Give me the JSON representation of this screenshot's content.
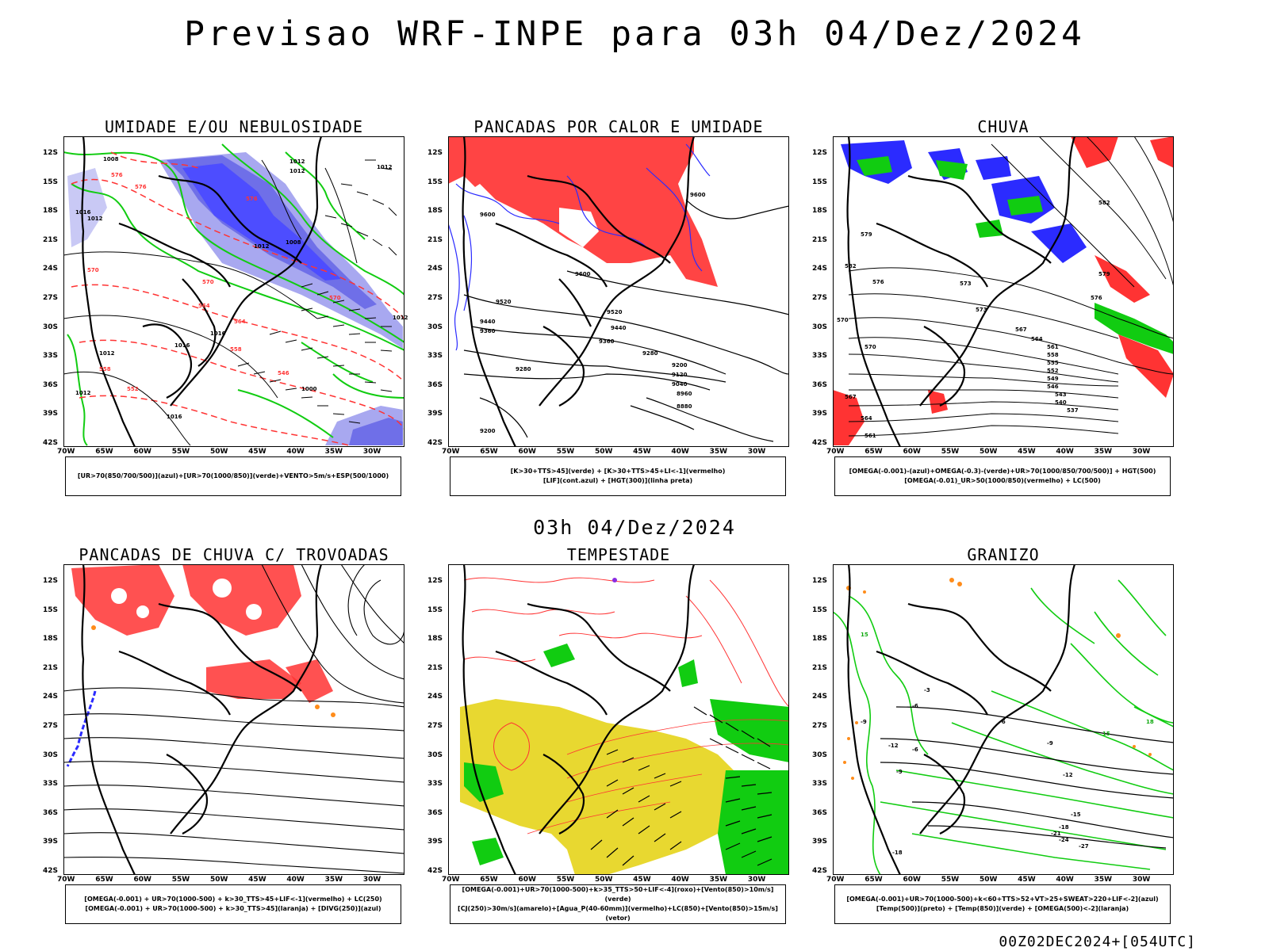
{
  "title": "Previsao WRF-INPE  para 03h 04/Dez/2024",
  "mid_date": "03h 04/Dez/2024",
  "footer": "00Z02DEC2024+[054UTC]",
  "axes": {
    "lat_labels": [
      "12S",
      "15S",
      "18S",
      "21S",
      "24S",
      "27S",
      "30S",
      "33S",
      "36S",
      "39S",
      "42S"
    ],
    "lon_labels": [
      "70W",
      "65W",
      "60W",
      "55W",
      "50W",
      "45W",
      "40W",
      "35W",
      "30W"
    ]
  },
  "colors": {
    "blue": "#2b2bff",
    "light_blue": "#a8a8f0",
    "mid_blue": "#6f6fe8",
    "green": "#11cc11",
    "red": "#ff3333",
    "yellow": "#e8d830",
    "orange": "#ff8c1a",
    "black": "#000000"
  },
  "panels": [
    {
      "title": "UMIDADE E/OU NEBULOSIDADE",
      "legend": [
        "[UR>70(850/700/500)](azul)+[UR>70(1000/850)](verde)+VENTO>5m/s+ESP(500/1000)"
      ],
      "isolines": [
        "1008",
        "1012",
        "1012",
        "1016",
        "1012",
        "1008",
        "1012",
        "1016",
        "1012",
        "1016",
        "1012",
        "1000",
        "1016",
        "1012",
        "1012"
      ],
      "red_labels": [
        "576",
        "570",
        "576",
        "564",
        "558",
        "552",
        "546",
        "570",
        "576",
        "570",
        "564",
        "558"
      ]
    },
    {
      "title": "PANCADAS POR CALOR E UMIDADE",
      "legend": [
        "[K>30+TTS>45](verde) + [K>30+TTS>45+LI<-1](vermelho)",
        "[LIF](cont.azul) + [HGT(300)](linha preta)"
      ],
      "isolines": [
        "9600",
        "9600",
        "9600",
        "9520",
        "9520",
        "9440",
        "9360",
        "9440",
        "9360",
        "9280",
        "9280",
        "9200",
        "9120",
        "9040",
        "8960",
        "8880",
        "9200"
      ]
    },
    {
      "title": "CHUVA",
      "legend": [
        "[OMEGA(-0.001)-(azul)+OMEGA(-0.3)-(verde)+UR>70(1000/850/700/500)] + HGT(500)",
        "[OMEGA(-0.01)_UR>50(1000/850)(vermelho) + LC(500)"
      ],
      "isolines": [
        "582",
        "579",
        "576",
        "573",
        "570",
        "567",
        "564",
        "561",
        "558",
        "555",
        "552",
        "549",
        "546",
        "543",
        "540",
        "537",
        "570",
        "567",
        "564",
        "561",
        "573",
        "576",
        "579",
        "582"
      ]
    },
    {
      "title": "PANCADAS DE CHUVA C/ TROVOADAS",
      "legend": [
        "[OMEGA(-0.001) + UR>70(1000-500) + k>30_TTS>45+LIF<-1](vermelho) + LC(250)",
        "[OMEGA(-0.001) + UR>70(1000-500) + k>30_TTS>45](laranja) + [DIVG(250)](azul)"
      ]
    },
    {
      "title": "TEMPESTADE",
      "legend": [
        "[OMEGA(-0.001)+UR>70(1000-500)+k>35_TTS>50+LIF<-4](roxo)+[Vento(850)>10m/s](verde)",
        "[CJ(250)>30m/s](amarelo)+[Agua_P(40-60mm)](vermelho)+LC(850)+[Vento(850)>15m/s](vetor)"
      ]
    },
    {
      "title": "GRANIZO",
      "legend": [
        "[OMEGA(-0.001)+UR>70(1000-500)+k<60+TTS>52+VT>25+SWEAT>220+LIF<-2](azul)",
        "[Temp(500)](preto) + [Temp(850)](verde) + [OMEGA(500)<-2](laranja)"
      ],
      "isolines": [
        "-6",
        "-9",
        "-12",
        "-15",
        "-18",
        "-21",
        "-24",
        "-27",
        "-6",
        "-9",
        "-12",
        "-18",
        "-3",
        "-6",
        "-9",
        "15",
        "18",
        "15"
      ]
    }
  ]
}
